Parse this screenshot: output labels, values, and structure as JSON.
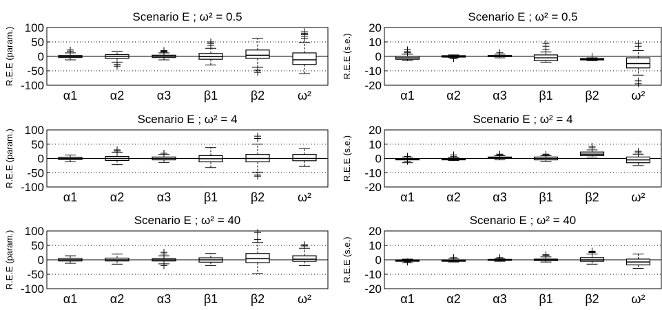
{
  "chart_data": [
    {
      "type": "box",
      "title": "Scenario E   ;   ω² = 0.5",
      "ylabel": "R.E.E (param.)",
      "ylim": [
        -100,
        100
      ],
      "yticks": [
        -100,
        -50,
        0,
        50,
        100
      ],
      "grid_y": [
        -50,
        50
      ],
      "categories": [
        "α1",
        "α2",
        "α3",
        "β1",
        "β2",
        "ω²"
      ],
      "boxes": [
        {
          "min": -12,
          "q1": -4,
          "median": -1,
          "q3": 3,
          "max": 12,
          "outliers": [
            18,
            22
          ]
        },
        {
          "min": -20,
          "q1": -7,
          "median": 0,
          "q3": 6,
          "max": 18,
          "outliers": [
            -28,
            -34
          ]
        },
        {
          "min": -12,
          "q1": -4,
          "median": 0,
          "q3": 4,
          "max": 12,
          "outliers": [
            15,
            18,
            20
          ]
        },
        {
          "min": -30,
          "q1": -10,
          "median": -1,
          "q3": 10,
          "max": 28,
          "outliers": [
            38,
            45,
            50
          ]
        },
        {
          "min": -38,
          "q1": -7,
          "median": 4,
          "q3": 22,
          "max": 63,
          "outliers": [
            -48,
            -55
          ]
        },
        {
          "min": -60,
          "q1": -28,
          "median": -12,
          "q3": 12,
          "max": 48,
          "outliers": [
            62,
            70,
            75,
            80,
            85
          ]
        }
      ]
    },
    {
      "type": "box",
      "title": "Scenario E   ;   ω² = 0.5",
      "ylabel": "R.E.E (s.e.)",
      "ylim": [
        -20,
        20
      ],
      "yticks": [
        -20,
        -10,
        0,
        10,
        20
      ],
      "grid_y": [
        -10,
        10
      ],
      "categories": [
        "α1",
        "α2",
        "α3",
        "β1",
        "β2",
        "ω²"
      ],
      "boxes": [
        {
          "min": -3,
          "q1": -2,
          "median": -1,
          "q3": 0,
          "max": 1.5,
          "outliers": [
            2.5,
            3.5,
            4.5
          ]
        },
        {
          "min": -1,
          "q1": -0.5,
          "median": 0,
          "q3": 0.5,
          "max": 1,
          "outliers": [
            -1.5
          ]
        },
        {
          "min": -1,
          "q1": -0.2,
          "median": 0.2,
          "q3": 0.6,
          "max": 1.5,
          "outliers": [
            2.5
          ]
        },
        {
          "min": -4,
          "q1": -3,
          "median": -1,
          "q3": 1,
          "max": 3,
          "outliers": [
            5,
            7,
            9
          ]
        },
        {
          "min": -3,
          "q1": -2.5,
          "median": -2,
          "q3": -1.5,
          "max": -1,
          "outliers": [
            0
          ]
        },
        {
          "min": -13,
          "q1": -8,
          "median": -5,
          "q3": -1,
          "max": 4,
          "outliers": [
            -17,
            -19,
            7,
            9
          ]
        }
      ]
    },
    {
      "type": "box",
      "title": "Scenario E   ;   ω² = 4",
      "ylabel": "R.E.E (param.)",
      "ylim": [
        -100,
        100
      ],
      "yticks": [
        -100,
        -50,
        0,
        50,
        100
      ],
      "grid_y": [
        -50,
        50
      ],
      "categories": [
        "α1",
        "α2",
        "α3",
        "β1",
        "β2",
        "ω²"
      ],
      "boxes": [
        {
          "min": -12,
          "q1": -4,
          "median": 0,
          "q3": 4,
          "max": 12,
          "outliers": []
        },
        {
          "min": -22,
          "q1": -7,
          "median": 0,
          "q3": 7,
          "max": 22,
          "outliers": [
            26,
            30
          ]
        },
        {
          "min": -14,
          "q1": -5,
          "median": 0,
          "q3": 5,
          "max": 14,
          "outliers": [
            18
          ]
        },
        {
          "min": -32,
          "q1": -12,
          "median": -1,
          "q3": 10,
          "max": 38,
          "outliers": []
        },
        {
          "min": -48,
          "q1": -12,
          "median": 0,
          "q3": 14,
          "max": 50,
          "outliers": [
            -58,
            -62,
            70,
            78
          ]
        },
        {
          "min": -28,
          "q1": -8,
          "median": 0,
          "q3": 14,
          "max": 35,
          "outliers": []
        }
      ]
    },
    {
      "type": "box",
      "title": "Scenario E   ;   ω² = 4",
      "ylabel": "R.E.E (s.e.)",
      "ylim": [
        -20,
        20
      ],
      "yticks": [
        -20,
        -10,
        0,
        10,
        20
      ],
      "grid_y": [
        -10,
        10
      ],
      "categories": [
        "α1",
        "α2",
        "α3",
        "β1",
        "β2",
        "ω²"
      ],
      "boxes": [
        {
          "min": -3,
          "q1": -1,
          "median": -0.5,
          "q3": 0,
          "max": 1,
          "outliers": [
            -2,
            1.5
          ]
        },
        {
          "min": -1.5,
          "q1": -1,
          "median": -0.5,
          "q3": 0,
          "max": 0.5,
          "outliers": [
            1.5,
            2.5
          ]
        },
        {
          "min": -1,
          "q1": 0,
          "median": 0.5,
          "q3": 1,
          "max": 2,
          "outliers": [
            2.5,
            3
          ]
        },
        {
          "min": -2,
          "q1": -1,
          "median": 0,
          "q3": 1,
          "max": 2,
          "outliers": [
            2.5,
            3
          ]
        },
        {
          "min": 1,
          "q1": 2,
          "median": 3,
          "q3": 4.5,
          "max": 6,
          "outliers": [
            7.5,
            8.5
          ]
        },
        {
          "min": -5,
          "q1": -3,
          "median": -1,
          "q3": 1,
          "max": 3,
          "outliers": [
            4,
            5
          ]
        }
      ]
    },
    {
      "type": "box",
      "title": "Scenario E   ;   ω² = 40",
      "ylabel": "R.E.E (param.)",
      "ylim": [
        -100,
        100
      ],
      "yticks": [
        -100,
        -50,
        0,
        50,
        100
      ],
      "grid_y": [
        -50,
        50
      ],
      "categories": [
        "α1",
        "α2",
        "α3",
        "β1",
        "β2",
        "ω²"
      ],
      "boxes": [
        {
          "min": -12,
          "q1": -4,
          "median": 0,
          "q3": 5,
          "max": 14,
          "outliers": []
        },
        {
          "min": -15,
          "q1": -4,
          "median": 0,
          "q3": 6,
          "max": 20,
          "outliers": []
        },
        {
          "min": -14,
          "q1": -4,
          "median": 0,
          "q3": 4,
          "max": 14,
          "outliers": [
            -20,
            20,
            26
          ]
        },
        {
          "min": -20,
          "q1": -8,
          "median": 0,
          "q3": 7,
          "max": 22,
          "outliers": []
        },
        {
          "min": -48,
          "q1": -10,
          "median": 4,
          "q3": 22,
          "max": 60,
          "outliers": [
            70,
            95
          ]
        },
        {
          "min": -20,
          "q1": -5,
          "median": 2,
          "q3": 14,
          "max": 40,
          "outliers": [
            48,
            52
          ]
        }
      ]
    },
    {
      "type": "box",
      "title": "Scenario E   ;   ω² = 40",
      "ylabel": "R.E.E (s.e.)",
      "ylim": [
        -20,
        20
      ],
      "yticks": [
        -20,
        -10,
        0,
        10,
        20
      ],
      "grid_y": [
        -10,
        10
      ],
      "categories": [
        "α1",
        "α2",
        "α3",
        "β1",
        "β2",
        "ω²"
      ],
      "boxes": [
        {
          "min": -2,
          "q1": -1,
          "median": -0.5,
          "q3": 0,
          "max": 0.5,
          "outliers": [
            -1.5
          ]
        },
        {
          "min": -1.5,
          "q1": -1,
          "median": -0.5,
          "q3": 0,
          "max": 1,
          "outliers": [
            1.5
          ]
        },
        {
          "min": -1,
          "q1": -0.3,
          "median": 0,
          "q3": 0.3,
          "max": 1,
          "outliers": [
            1.5
          ]
        },
        {
          "min": -1.5,
          "q1": -0.5,
          "median": 0,
          "q3": 0.5,
          "max": 2,
          "outliers": [
            3,
            3.5
          ]
        },
        {
          "min": -3,
          "q1": -1,
          "median": 0,
          "q3": 1.5,
          "max": 4,
          "outliers": [
            5,
            5.5,
            6
          ]
        },
        {
          "min": -6,
          "q1": -3.5,
          "median": -1.5,
          "q3": 0.5,
          "max": 4,
          "outliers": []
        }
      ]
    }
  ]
}
